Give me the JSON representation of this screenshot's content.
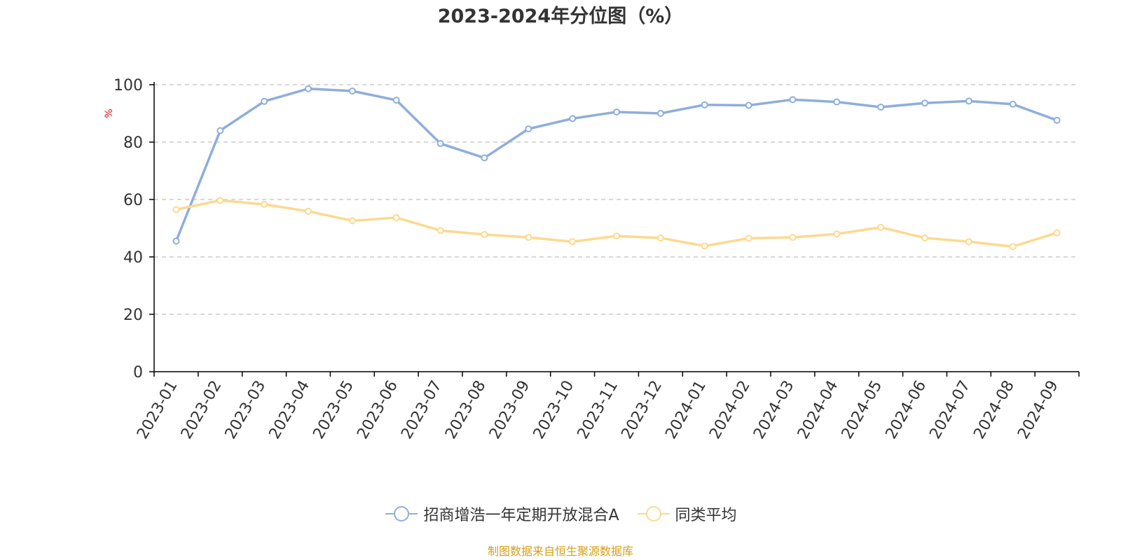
{
  "chart_data": {
    "type": "line",
    "title": "2023-2024年分位图（%）",
    "ylabel": "%",
    "xlabel": "",
    "ylim": [
      0,
      100
    ],
    "yticks": [
      0,
      20,
      40,
      60,
      80,
      100
    ],
    "grid": true,
    "legend_position": "bottom",
    "categories": [
      "2023-01",
      "2023-02",
      "2023-03",
      "2023-04",
      "2023-05",
      "2023-06",
      "2023-07",
      "2023-08",
      "2023-09",
      "2023-10",
      "2023-11",
      "2023-12",
      "2024-01",
      "2024-02",
      "2024-03",
      "2024-04",
      "2024-05",
      "2024-06",
      "2024-07",
      "2024-08",
      "2024-09"
    ],
    "series": [
      {
        "name": "招商增浩一年定期开放混合A",
        "color": "#8eaedb",
        "values": [
          45.5,
          84.0,
          94.2,
          98.6,
          97.8,
          94.6,
          79.5,
          74.5,
          84.6,
          88.2,
          90.5,
          90.0,
          93.0,
          92.8,
          94.8,
          94.0,
          92.2,
          93.6,
          94.3,
          93.2,
          87.6
        ]
      },
      {
        "name": "同类平均",
        "color": "#fdd98f",
        "values": [
          56.5,
          59.7,
          58.3,
          55.9,
          52.6,
          53.7,
          49.2,
          47.8,
          46.8,
          45.3,
          47.3,
          46.6,
          43.8,
          46.5,
          46.8,
          48.0,
          50.3,
          46.6,
          45.3,
          43.6,
          48.4
        ]
      }
    ]
  },
  "source_note": "制图数据来自恒生聚源数据库",
  "colors": {
    "title": "#333333",
    "axis": "#000000",
    "grid": "#cccccc",
    "ylabel": "#ff0000",
    "source_note": "#d4a017"
  }
}
